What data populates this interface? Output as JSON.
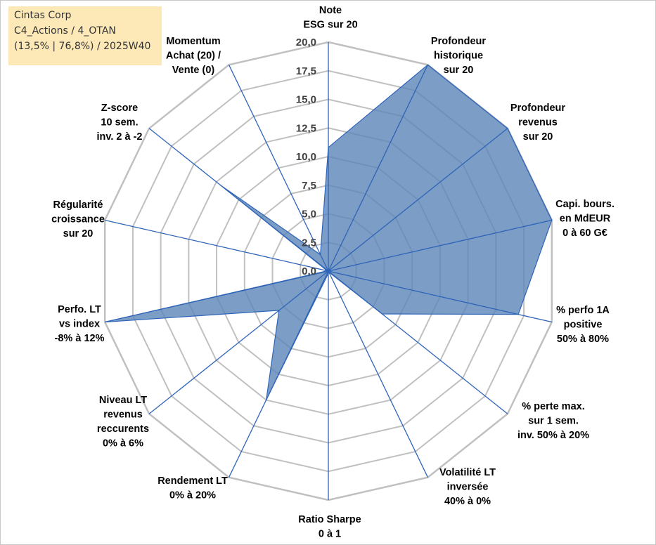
{
  "info_box": {
    "line1": "Cintas Corp",
    "line2": "C4_Actions / 4_OTAN",
    "line3": "(13,5% | 76,8%) / 2025W40"
  },
  "colors": {
    "fill": "#5b84b8",
    "stroke": "#2e64b8",
    "grid": "#c0c0c0",
    "spoke": "#2e64b8"
  },
  "chart_data": {
    "type": "radar",
    "title": "",
    "r_range": [
      0,
      20
    ],
    "grid_step": 2.5,
    "tick_labels": [
      "0,0",
      "2,5",
      "5,0",
      "7,5",
      "10,0",
      "12,5",
      "15,0",
      "17,5",
      "20,0"
    ],
    "axes": [
      {
        "label": [
          "Note",
          "ESG sur 20"
        ],
        "value": 10.8
      },
      {
        "label": [
          "Profondeur",
          "historique",
          "sur 20"
        ],
        "value": 20.0
      },
      {
        "label": [
          "Profondeur",
          "revenus",
          "sur 20"
        ],
        "value": 20.0
      },
      {
        "label": [
          "Capi. bours.",
          "en MdEUR",
          "0 à 60 G€"
        ],
        "value": 20.0
      },
      {
        "label": [
          "% perfo 1A",
          "positive",
          "50% à 80%"
        ],
        "value": 17.0
      },
      {
        "label": [
          "% perte max.",
          "sur 1 sem.",
          "inv. 50% à 20%"
        ],
        "value": 6.0
      },
      {
        "label": [
          "Volatilité LT",
          "inversée",
          "40% à 0%"
        ],
        "value": 0.1
      },
      {
        "label": [
          "Ratio Sharpe",
          "0 à 1"
        ],
        "value": 0.2
      },
      {
        "label": [
          "Rendement LT",
          "0% à 20%"
        ],
        "value": 12.5
      },
      {
        "label": [
          "Niveau LT",
          "revenus",
          "reccurents",
          "0% à 6%"
        ],
        "value": 5.5
      },
      {
        "label": [
          "Perfo. LT",
          "vs index",
          "-8% à 12%"
        ],
        "value": 20.0
      },
      {
        "label": [
          "Régularité",
          "croissance",
          "sur 20"
        ],
        "value": 0.1
      },
      {
        "label": [
          "Z-score",
          "10 sem.",
          "inv. 2 à -2"
        ],
        "value": 12.0
      },
      {
        "label": [
          "Momentum",
          "Achat (20) /",
          "Vente (0)"
        ],
        "value": 1.6
      }
    ]
  }
}
